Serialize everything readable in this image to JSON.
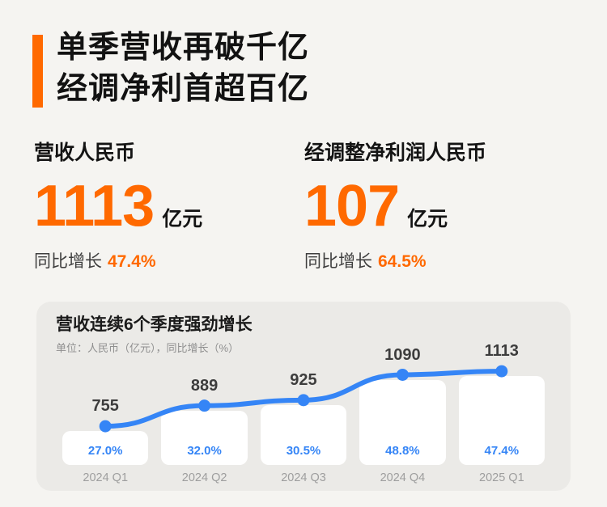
{
  "header": {
    "title_line1": "单季营收再破千亿",
    "title_line2": "经调净利首超百亿"
  },
  "stats": [
    {
      "label": "营收人民币",
      "value": "1113",
      "unit": "亿元",
      "growth_label": "同比增长",
      "growth_value": "47.4%"
    },
    {
      "label": "经调整净利润人民币",
      "value": "107",
      "unit": "亿元",
      "growth_label": "同比增长",
      "growth_value": "64.5%"
    }
  ],
  "chart_data": {
    "type": "line",
    "title": "营收连续6个季度强劲增长",
    "subtitle": "单位：人民币（亿元），同比增长（%）",
    "categories": [
      "2024 Q1",
      "2024 Q2",
      "2024 Q3",
      "2024 Q4",
      "2025 Q1"
    ],
    "series": [
      {
        "name": "营收（亿元）",
        "values": [
          755,
          889,
          925,
          1090,
          1113
        ]
      },
      {
        "name": "同比增长（%）",
        "values": [
          "27.0%",
          "32.0%",
          "30.5%",
          "48.8%",
          "47.4%"
        ]
      }
    ],
    "ylim": [
      500,
      1200
    ],
    "grid": false,
    "legend_position": "none"
  },
  "colors": {
    "accent_orange": "#ff6900",
    "line_blue": "#3585f6",
    "page_bg": "#f5f4f1",
    "card_bg": "#ebeae7",
    "bar_white": "#ffffff"
  }
}
